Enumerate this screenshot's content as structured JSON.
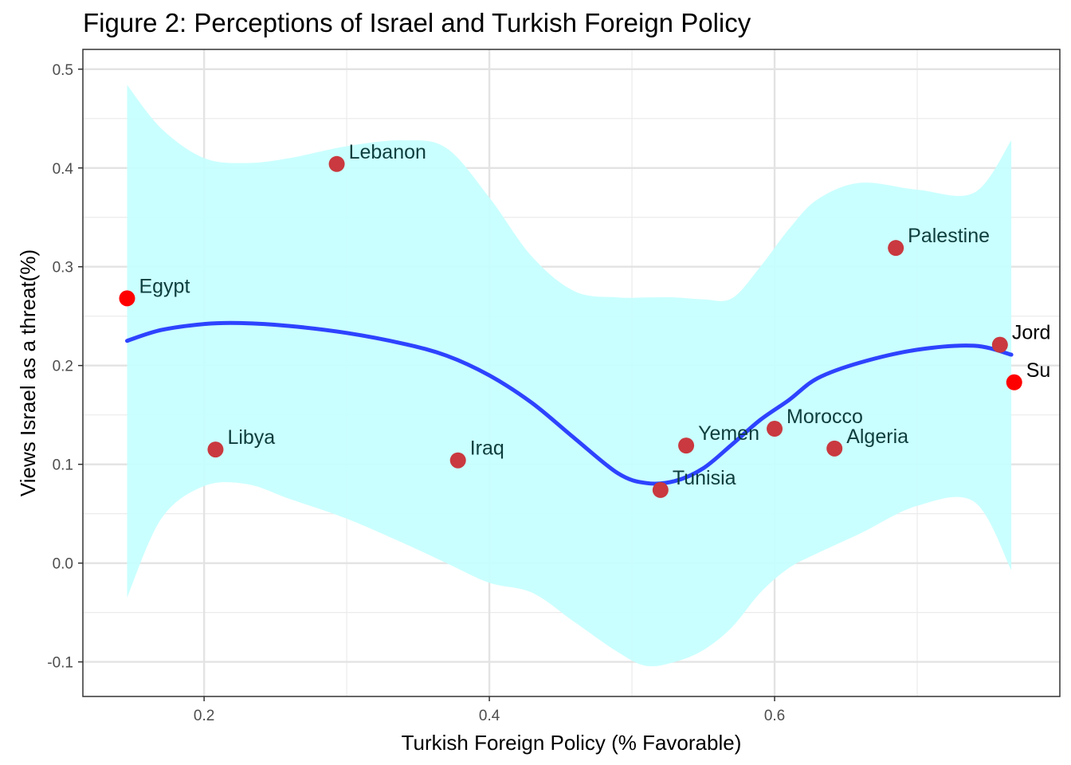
{
  "chart_data": {
    "type": "scatter",
    "title": "Figure 2: Perceptions of Israel and Turkish Foreign Policy",
    "xlabel": "Turkish Foreign Policy (% Favorable)",
    "ylabel": "Views Israel as a threat(%)",
    "xlim": [
      0.115,
      0.8
    ],
    "ylim": [
      -0.135,
      0.52
    ],
    "x_ticks": [
      0.2,
      0.4,
      0.6
    ],
    "x_tick_labels": [
      "0.2",
      "0.4",
      "0.6"
    ],
    "y_ticks": [
      -0.1,
      0.0,
      0.1,
      0.2,
      0.3,
      0.4,
      0.5
    ],
    "y_tick_labels": [
      "-0.1",
      "0.0",
      "0.1",
      "0.2",
      "0.3",
      "0.4",
      "0.5"
    ],
    "grid": true,
    "point_color": "#c9393f",
    "highlight_color": "#ff0000",
    "band_color": "#c6ffff",
    "line_color": "#2d43ff",
    "points": [
      {
        "label": "Egypt",
        "x": 0.146,
        "y": 0.268,
        "highlight": true
      },
      {
        "label": "Libya",
        "x": 0.208,
        "y": 0.115,
        "highlight": false
      },
      {
        "label": "Lebanon",
        "x": 0.293,
        "y": 0.404,
        "highlight": false
      },
      {
        "label": "Iraq",
        "x": 0.378,
        "y": 0.104,
        "highlight": false
      },
      {
        "label": "Tunisia",
        "x": 0.52,
        "y": 0.074,
        "highlight": false
      },
      {
        "label": "Yemen",
        "x": 0.538,
        "y": 0.119,
        "highlight": false
      },
      {
        "label": "Morocco",
        "x": 0.6,
        "y": 0.136,
        "highlight": false
      },
      {
        "label": "Algeria",
        "x": 0.642,
        "y": 0.116,
        "highlight": false
      },
      {
        "label": "Palestine",
        "x": 0.685,
        "y": 0.319,
        "highlight": false
      },
      {
        "label": "Jord",
        "x": 0.758,
        "y": 0.221,
        "highlight": false
      },
      {
        "label": "Su",
        "x": 0.768,
        "y": 0.183,
        "highlight": true
      }
    ],
    "smooth_curve": {
      "x": [
        0.146,
        0.17,
        0.2,
        0.225,
        0.26,
        0.3,
        0.34,
        0.37,
        0.4,
        0.43,
        0.46,
        0.49,
        0.51,
        0.53,
        0.55,
        0.57,
        0.59,
        0.61,
        0.63,
        0.66,
        0.7,
        0.74,
        0.766
      ],
      "y": [
        0.225,
        0.236,
        0.242,
        0.243,
        0.24,
        0.233,
        0.222,
        0.21,
        0.19,
        0.162,
        0.126,
        0.091,
        0.081,
        0.083,
        0.096,
        0.12,
        0.145,
        0.165,
        0.187,
        0.203,
        0.216,
        0.22,
        0.211
      ]
    },
    "confidence_band": {
      "x": [
        0.146,
        0.17,
        0.2,
        0.23,
        0.26,
        0.3,
        0.34,
        0.37,
        0.4,
        0.43,
        0.46,
        0.49,
        0.51,
        0.53,
        0.55,
        0.57,
        0.59,
        0.61,
        0.63,
        0.66,
        0.7,
        0.74,
        0.766
      ],
      "upper": [
        0.484,
        0.44,
        0.41,
        0.405,
        0.41,
        0.422,
        0.428,
        0.42,
        0.37,
        0.31,
        0.275,
        0.269,
        0.269,
        0.269,
        0.267,
        0.268,
        0.3,
        0.338,
        0.368,
        0.385,
        0.378,
        0.375,
        0.428
      ],
      "lower": [
        -0.035,
        0.045,
        0.078,
        0.08,
        0.065,
        0.045,
        0.02,
        0.0,
        -0.02,
        -0.03,
        -0.06,
        -0.09,
        -0.104,
        -0.1,
        -0.088,
        -0.065,
        -0.03,
        -0.005,
        0.01,
        0.03,
        0.058,
        0.062,
        -0.007
      ]
    }
  }
}
